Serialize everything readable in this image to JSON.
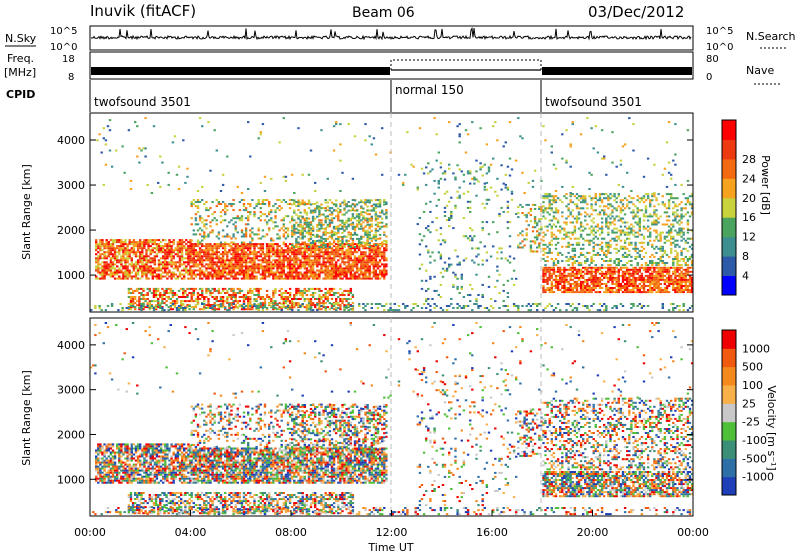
{
  "header": {
    "station": "Inuvik (fitACF)",
    "beam": "Beam 06",
    "date": "03/Dec/2012"
  },
  "labels": {
    "nsky": "N.Sky",
    "freq_line1": "Freq.",
    "freq_line2": "[MHz]",
    "cpid": "CPID",
    "nsearch": "N.Search",
    "nave": "Nave",
    "nsky_top": "10^5",
    "nsky_bottom": "10^0",
    "nsearch_top": "10^5",
    "nsearch_bottom": "10^0",
    "freq_top": "18",
    "freq_bottom": "8",
    "nave_top": "80",
    "nave_bottom": "0"
  },
  "cpid_segments": [
    {
      "label": "twofsound 3501",
      "start_hour": 0,
      "end_hour": 12
    },
    {
      "label": "normal 150",
      "start_hour": 12,
      "end_hour": 18
    },
    {
      "label": "twofsound 3501",
      "start_hour": 18,
      "end_hour": 24
    }
  ],
  "power_scale": {
    "title": "Power [dB]",
    "ticks": [
      "4",
      "8",
      "12",
      "16",
      "20",
      "24",
      "28"
    ],
    "colors": [
      "#0000ff",
      "#2c59a8",
      "#3d8f8f",
      "#4aa35e",
      "#c8d23c",
      "#f7a21e",
      "#f46a12",
      "#ee3a10",
      "#ff0000"
    ]
  },
  "velocity_scale": {
    "title": "Velocity [m s⁻¹]",
    "ticks": [
      "1000",
      "500",
      "100",
      "25",
      "-25",
      "-100",
      "-500",
      "-1000"
    ],
    "colors": [
      "#1f3fb8",
      "#2f6fa8",
      "#3c8f77",
      "#4fbf3a",
      "#c8c8c8",
      "#f7b04a",
      "#f48a1e",
      "#f05a10",
      "#ee0000"
    ]
  },
  "chart_data": [
    {
      "type": "heatmap",
      "name": "power",
      "ylabel": "Slant Range [km]",
      "yticks": [
        1000,
        2000,
        3000,
        4000
      ],
      "ylim": [
        180,
        4600
      ],
      "xlim": [
        0,
        24
      ],
      "description_of_scatter_regions_hours": [
        {
          "x": [
            0,
            4
          ],
          "y": [
            900,
            1800
          ],
          "level": "high"
        },
        {
          "x": [
            2,
            10
          ],
          "y": [
            200,
            700
          ],
          "level": "high"
        },
        {
          "x": [
            4,
            12
          ],
          "y": [
            900,
            1700
          ],
          "level": "high"
        },
        {
          "x": [
            18,
            24
          ],
          "y": [
            700,
            1200
          ],
          "level": "high"
        }
      ]
    },
    {
      "type": "heatmap",
      "name": "velocity",
      "ylabel": "Slant Range [km]",
      "xlabel": "Time UT",
      "xticks": [
        "00:00",
        "04:00",
        "08:00",
        "12:00",
        "16:00",
        "20:00",
        "00:00"
      ],
      "yticks": [
        1000,
        2000,
        3000,
        4000
      ],
      "ylim": [
        180,
        4600
      ],
      "xlim": [
        0,
        24
      ]
    }
  ]
}
